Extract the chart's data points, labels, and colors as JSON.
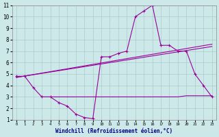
{
  "xlabel": "Windchill (Refroidissement éolien,°C)",
  "line_color": "#990099",
  "bg_color": "#cce8e8",
  "grid_color": "#aacccc",
  "xlim": [
    -0.5,
    23.5
  ],
  "ylim": [
    1,
    11
  ],
  "xticks": [
    0,
    1,
    2,
    3,
    4,
    5,
    6,
    7,
    8,
    9,
    10,
    11,
    12,
    13,
    14,
    15,
    16,
    17,
    18,
    19,
    20,
    21,
    22,
    23
  ],
  "yticks": [
    1,
    2,
    3,
    4,
    5,
    6,
    7,
    8,
    9,
    10,
    11
  ],
  "line1_x": [
    0,
    1,
    2,
    3,
    4,
    5,
    6,
    7,
    8,
    9,
    10,
    11,
    12,
    13,
    14,
    15,
    16,
    17,
    18,
    19,
    20,
    21,
    22,
    23
  ],
  "line1_y": [
    4.8,
    4.8,
    3.8,
    3.0,
    3.0,
    2.5,
    2.2,
    1.5,
    1.2,
    1.1,
    6.5,
    6.5,
    6.8,
    7.0,
    10.0,
    10.5,
    11.0,
    7.5,
    7.5,
    7.0,
    7.0,
    5.0,
    4.0,
    3.0
  ],
  "line2_x": [
    0,
    23
  ],
  "line2_y": [
    4.7,
    7.6
  ],
  "line3_x": [
    0,
    23
  ],
  "line3_y": [
    4.7,
    7.4
  ],
  "line4_x": [
    3,
    19,
    20,
    21,
    22,
    23
  ],
  "line4_y": [
    3.0,
    3.0,
    3.1,
    3.1,
    3.1,
    3.1
  ]
}
